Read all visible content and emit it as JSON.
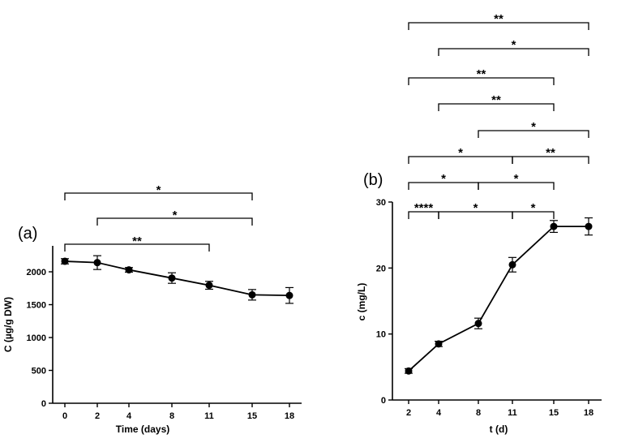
{
  "chart_data": [
    {
      "type": "line",
      "panel_label": "(a)",
      "xlabel": "Time (days)",
      "ylabel": "C (µg/g DW)",
      "categories": [
        "0",
        "2",
        "4",
        "8",
        "11",
        "15",
        "18"
      ],
      "x": [
        0,
        2,
        4,
        8,
        11,
        15,
        18
      ],
      "values": [
        2160,
        2140,
        2030,
        1905,
        1795,
        1650,
        1640
      ],
      "errors": [
        40,
        105,
        35,
        80,
        60,
        80,
        120
      ],
      "ylim": [
        0,
        2400
      ],
      "yticks": [
        0,
        500,
        1000,
        1500,
        2000
      ],
      "ytick_labels": [
        "0",
        "500",
        "1000",
        "1500",
        "2000"
      ],
      "significance": [
        {
          "from": "0",
          "to": "11",
          "label": "**"
        },
        {
          "from": "2",
          "to": "15",
          "label": "*"
        },
        {
          "from": "0",
          "to": "15",
          "label": "*"
        }
      ]
    },
    {
      "type": "line",
      "panel_label": "(b)",
      "xlabel": "t (d)",
      "ylabel": "c (mg/L)",
      "categories": [
        "2",
        "4",
        "8",
        "11",
        "15",
        "18"
      ],
      "x": [
        2,
        4,
        8,
        11,
        15,
        18
      ],
      "values": [
        4.4,
        8.5,
        11.6,
        20.5,
        26.3,
        26.3
      ],
      "errors": [
        0.35,
        0.4,
        0.8,
        1.1,
        0.9,
        1.3
      ],
      "ylim": [
        0,
        30
      ],
      "yticks": [
        0,
        10,
        20,
        30
      ],
      "ytick_labels": [
        "0",
        "10",
        "20",
        "30"
      ],
      "significance": [
        {
          "from": "2",
          "to": "4",
          "label": "****"
        },
        {
          "from": "4",
          "to": "11",
          "label": "*"
        },
        {
          "from": "11",
          "to": "15",
          "label": "*"
        },
        {
          "from": "2",
          "to": "8",
          "label": "*"
        },
        {
          "from": "8",
          "to": "15",
          "label": "*"
        },
        {
          "from": "2",
          "to": "11",
          "label": "*"
        },
        {
          "from": "11",
          "to": "18",
          "label": "**"
        },
        {
          "from": "8",
          "to": "18",
          "label": "*"
        },
        {
          "from": "4",
          "to": "15",
          "label": "**"
        },
        {
          "from": "2",
          "to": "15",
          "label": "**"
        },
        {
          "from": "4",
          "to": "18",
          "label": "*"
        },
        {
          "from": "2",
          "to": "18",
          "label": "**"
        }
      ]
    }
  ]
}
